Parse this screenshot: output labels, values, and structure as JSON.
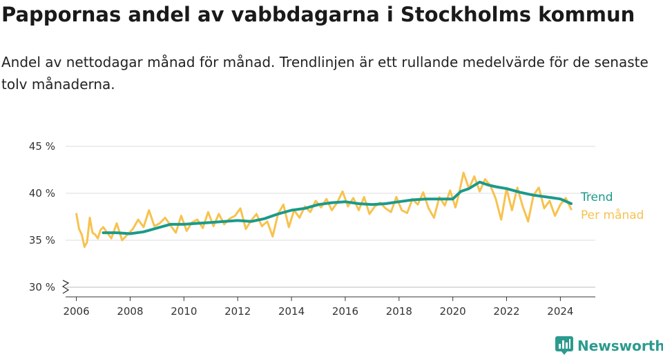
{
  "title": "Pappornas andel av vabbdagarna i Stockholms kommun",
  "subtitle": "Andel av nettodagar månad för månad. Trendlinjen är ett rullande medelvärde för de senaste tolv månaderna.",
  "brand": {
    "name": "Newsworthy",
    "color": "#2b9b8e",
    "icon": "bar-chart-logo-icon"
  },
  "colors": {
    "trend": "#1a9a8a",
    "monthly": "#f7c24e",
    "grid": "#dddddd",
    "axis": "#333333"
  },
  "chart_data": {
    "type": "line",
    "ylim": [
      30,
      45
    ],
    "xlim": [
      2005.6,
      2025.3
    ],
    "y_ticks": [
      30,
      35,
      40,
      45
    ],
    "y_tick_labels": [
      "30 %",
      "35 %",
      "40 %",
      "45 %"
    ],
    "x_ticks": [
      2006,
      2008,
      2010,
      2012,
      2014,
      2016,
      2018,
      2020,
      2022,
      2024
    ],
    "x_tick_labels": [
      "2006",
      "2008",
      "2010",
      "2012",
      "2014",
      "2016",
      "2018",
      "2020",
      "2022",
      "2024"
    ],
    "y_axis_break": true,
    "grid": "horizontal",
    "legend": "direct labels at right end of lines",
    "series": [
      {
        "name": "Per månad",
        "color": "#f7c24e",
        "x": [
          2006.0,
          2006.1,
          2006.2,
          2006.3,
          2006.4,
          2006.5,
          2006.6,
          2006.7,
          2006.8,
          2006.9,
          2007.0,
          2007.3,
          2007.5,
          2007.7,
          2007.9,
          2008.1,
          2008.3,
          2008.5,
          2008.7,
          2008.9,
          2009.1,
          2009.3,
          2009.5,
          2009.7,
          2009.9,
          2010.1,
          2010.3,
          2010.5,
          2010.7,
          2010.9,
          2011.1,
          2011.3,
          2011.5,
          2011.7,
          2011.9,
          2012.1,
          2012.3,
          2012.5,
          2012.7,
          2012.9,
          2013.1,
          2013.3,
          2013.5,
          2013.7,
          2013.9,
          2014.1,
          2014.3,
          2014.5,
          2014.7,
          2014.9,
          2015.1,
          2015.3,
          2015.5,
          2015.7,
          2015.9,
          2016.1,
          2016.3,
          2016.5,
          2016.7,
          2016.9,
          2017.1,
          2017.3,
          2017.5,
          2017.7,
          2017.9,
          2018.1,
          2018.3,
          2018.5,
          2018.7,
          2018.9,
          2019.1,
          2019.3,
          2019.5,
          2019.7,
          2019.9,
          2020.1,
          2020.2,
          2020.4,
          2020.6,
          2020.8,
          2021.0,
          2021.2,
          2021.4,
          2021.6,
          2021.8,
          2022.0,
          2022.2,
          2022.4,
          2022.6,
          2022.8,
          2023.0,
          2023.2,
          2023.4,
          2023.6,
          2023.8,
          2024.0,
          2024.2,
          2024.4
        ],
        "values": [
          37.8,
          36.2,
          35.6,
          34.3,
          34.8,
          37.4,
          35.8,
          35.6,
          35.2,
          36.1,
          36.4,
          35.2,
          36.8,
          35.0,
          35.6,
          36.2,
          37.2,
          36.4,
          38.2,
          36.5,
          36.8,
          37.4,
          36.6,
          35.8,
          37.6,
          36.0,
          36.9,
          37.2,
          36.3,
          38.0,
          36.5,
          37.8,
          36.7,
          37.3,
          37.6,
          38.4,
          36.2,
          37.1,
          37.8,
          36.5,
          37.0,
          35.4,
          37.8,
          38.8,
          36.4,
          38.2,
          37.4,
          38.6,
          38.0,
          39.2,
          38.5,
          39.4,
          38.2,
          39.0,
          40.2,
          38.6,
          39.5,
          38.2,
          39.6,
          37.8,
          38.6,
          39.0,
          38.4,
          38.0,
          39.6,
          38.2,
          37.9,
          39.4,
          38.8,
          40.1,
          38.4,
          37.4,
          39.6,
          38.7,
          40.3,
          38.5,
          39.6,
          42.2,
          40.5,
          41.8,
          40.2,
          41.5,
          40.8,
          39.4,
          37.2,
          40.5,
          38.2,
          40.6,
          38.6,
          37.0,
          39.8,
          40.6,
          38.4,
          39.2,
          37.6,
          38.8,
          39.5,
          38.3
        ]
      },
      {
        "name": "Trend",
        "color": "#1a9a8a",
        "x": [
          2007.0,
          2007.5,
          2008.0,
          2008.5,
          2009.0,
          2009.5,
          2010.0,
          2010.5,
          2011.0,
          2011.5,
          2012.0,
          2012.5,
          2013.0,
          2013.5,
          2014.0,
          2014.5,
          2015.0,
          2015.5,
          2016.0,
          2016.5,
          2017.0,
          2017.5,
          2018.0,
          2018.5,
          2019.0,
          2019.5,
          2020.0,
          2020.3,
          2020.6,
          2021.0,
          2021.3,
          2021.6,
          2022.0,
          2022.5,
          2023.0,
          2023.5,
          2024.0,
          2024.4
        ],
        "values": [
          35.8,
          35.8,
          35.7,
          35.9,
          36.3,
          36.7,
          36.7,
          36.8,
          36.9,
          37.0,
          37.1,
          37.0,
          37.3,
          37.8,
          38.2,
          38.4,
          38.8,
          39.0,
          39.1,
          38.9,
          38.8,
          38.9,
          39.1,
          39.3,
          39.4,
          39.4,
          39.4,
          40.2,
          40.5,
          41.2,
          40.9,
          40.7,
          40.5,
          40.1,
          39.8,
          39.6,
          39.4,
          38.9
        ]
      }
    ]
  }
}
